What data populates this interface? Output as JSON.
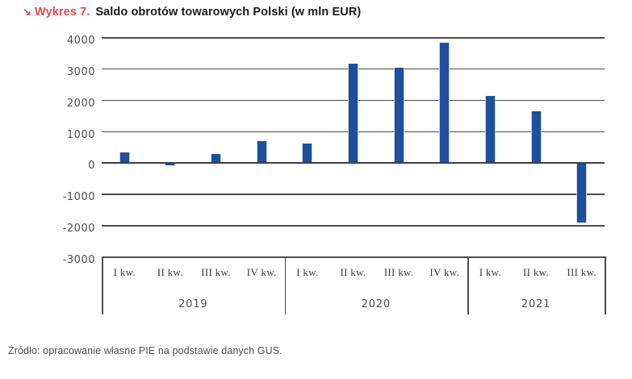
{
  "title": {
    "arrow": "↘",
    "label": "Wykres 7.",
    "text": "Saldo obrotów towarowych Polski (w mln EUR)"
  },
  "source": "Źródło: opracowanie własne PIE na podstawie danych GUS.",
  "colors": {
    "bar": "#1e4f9c",
    "bar_edge": "#c8d2ea",
    "grid": "#4d4d4d",
    "title_accent": "#e8474f",
    "axis_text": "#4d4d4d"
  },
  "chart_data": {
    "type": "bar",
    "title": "Saldo obrotów towarowych Polski (w mln EUR)",
    "categories": [
      "I kw.",
      "II kw.",
      "III kw.",
      "IV kw.",
      "I kw.",
      "II kw.",
      "III kw.",
      "IV kw.",
      "I kw.",
      "II kw.",
      "III kw."
    ],
    "groups": [
      {
        "label": "2019",
        "span": 4
      },
      {
        "label": "2020",
        "span": 4
      },
      {
        "label": "2021",
        "span": 3
      }
    ],
    "values": [
      320,
      -30,
      270,
      690,
      600,
      3150,
      3010,
      3820,
      2120,
      1620,
      -1870
    ],
    "xlabel": "",
    "ylabel": "",
    "ylim": [
      -3000,
      4000
    ],
    "yticks": [
      4000,
      3000,
      2000,
      1000,
      0,
      -1000,
      -2000,
      -3000
    ],
    "grid": true,
    "legend": false
  }
}
